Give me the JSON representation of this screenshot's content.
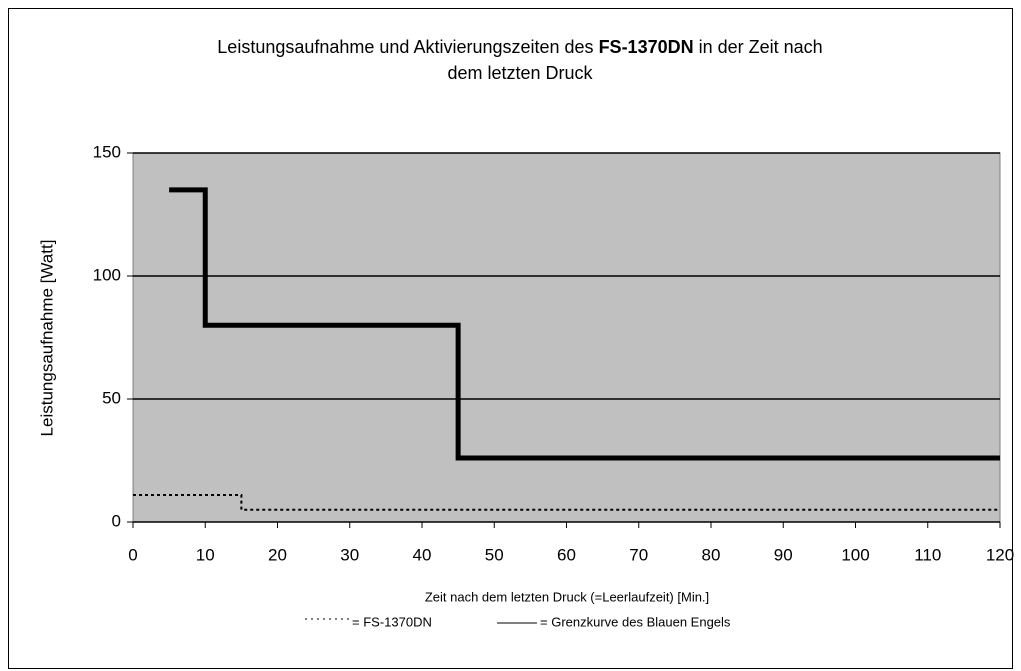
{
  "chart_data": {
    "type": "line",
    "title": [
      "Leistungsaufnahme und Aktivierungszeiten des ",
      "FS-1370DN",
      " in der Zeit nach",
      "dem letzten Druck"
    ],
    "x_label": "Zeit nach dem letzten Druck (=Leerlaufzeit) [Min.]",
    "y_label": "Leistungsaufnahme [Watt]",
    "xlim": [
      0,
      120
    ],
    "xticks": [
      0,
      10,
      20,
      30,
      40,
      50,
      60,
      70,
      80,
      90,
      100,
      110,
      120
    ],
    "ylim": [
      0,
      150
    ],
    "yticks": [
      0,
      50,
      100,
      150
    ],
    "grid": true,
    "series": [
      {
        "name": "= FS-1370DN",
        "color": "#000000",
        "style": "dotted",
        "x": [
          0,
          15,
          15,
          120
        ],
        "values": [
          11,
          11,
          5,
          5
        ]
      },
      {
        "name": "= Grenzkurve des Blauen Engels",
        "color": "#000000",
        "style": "solid",
        "x": [
          5,
          10,
          10,
          45,
          45,
          120
        ],
        "values": [
          135,
          135,
          80,
          80,
          26,
          26
        ]
      }
    ]
  }
}
